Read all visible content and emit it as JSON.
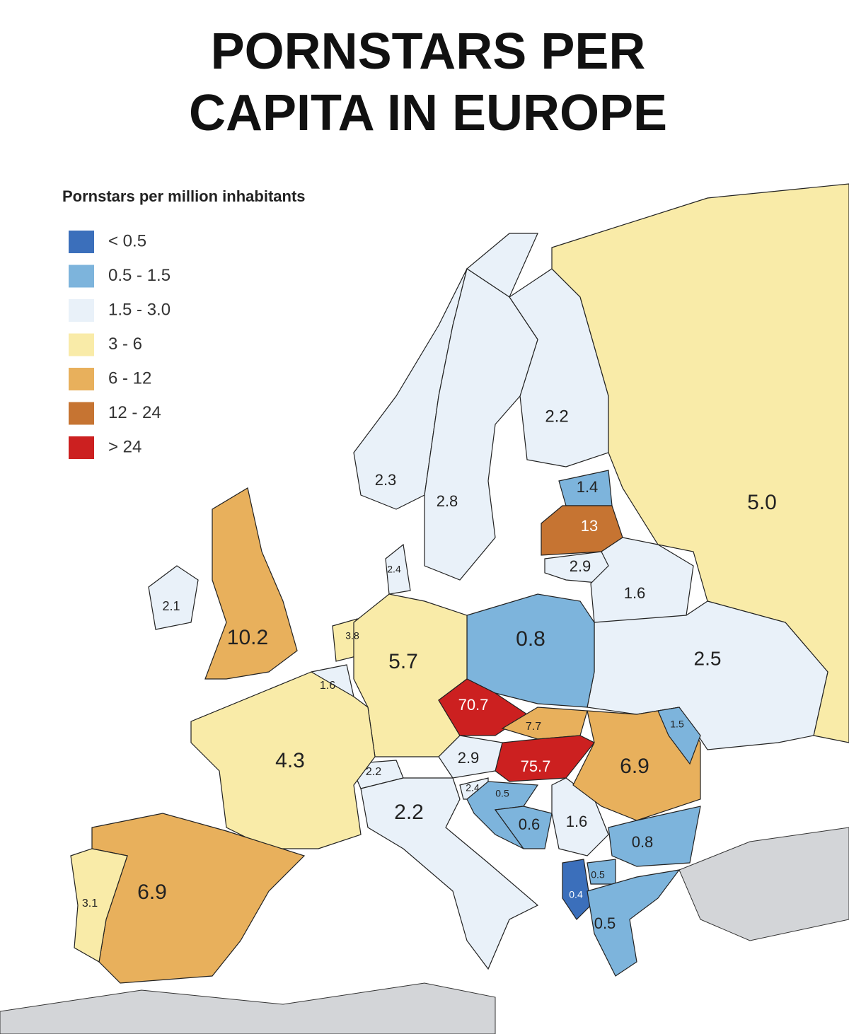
{
  "title": "PORNSTARS PER\nCAPITA IN EUROPE",
  "legend": {
    "title": "Pornstars per million inhabitants",
    "items": [
      {
        "label": "< 0.5",
        "color": "#3b6fbb"
      },
      {
        "label": "0.5 - 1.5",
        "color": "#7db4dc"
      },
      {
        "label": "1.5 - 3.0",
        "color": "#e9f1f9"
      },
      {
        "label": "3 - 6",
        "color": "#f9eba8"
      },
      {
        "label": "6 - 12",
        "color": "#e8b05c"
      },
      {
        "label": "12 - 24",
        "color": "#c67432"
      },
      {
        "label": "> 24",
        "color": "#cc2020"
      }
    ]
  },
  "regions": [
    {
      "value": 2.2,
      "color": "#e9f1f9"
    },
    {
      "value": 2.3,
      "color": "#e9f1f9"
    },
    {
      "value": 2.8,
      "color": "#e9f1f9"
    },
    {
      "value": 1.4,
      "color": "#7db4dc"
    },
    {
      "value": 13,
      "color": "#c67432"
    },
    {
      "value": 2.9,
      "color": "#e9f1f9"
    },
    {
      "value": 1.6,
      "color": "#e9f1f9"
    },
    {
      "value": 5,
      "label": "5.0",
      "color": "#f9eba8"
    },
    {
      "value": 2.5,
      "color": "#e9f1f9"
    },
    {
      "value": 0.8,
      "color": "#7db4dc"
    },
    {
      "value": 2.4,
      "color": "#e9f1f9"
    },
    {
      "value": 2.1,
      "color": "#e9f1f9"
    },
    {
      "value": 10.2,
      "color": "#e8b05c"
    },
    {
      "value": 3.8,
      "color": "#f9eba8"
    },
    {
      "value": 1.6,
      "color": "#e9f1f9"
    },
    {
      "value": 5.7,
      "color": "#f9eba8"
    },
    {
      "value": 70.7,
      "color": "#cc2020"
    },
    {
      "value": 7.7,
      "color": "#e8b05c"
    },
    {
      "value": 75.7,
      "color": "#cc2020"
    },
    {
      "value": 2.9,
      "color": "#e9f1f9"
    },
    {
      "value": 2.2,
      "color": "#e9f1f9"
    },
    {
      "value": 4.3,
      "color": "#f9eba8"
    },
    {
      "value": 2.2,
      "color": "#e9f1f9"
    },
    {
      "value": 2.4,
      "color": "#e9f1f9"
    },
    {
      "value": 0.5,
      "color": "#7db4dc"
    },
    {
      "value": 0.6,
      "color": "#7db4dc"
    },
    {
      "value": 1.6,
      "color": "#e9f1f9"
    },
    {
      "value": 6.9,
      "color": "#e8b05c"
    },
    {
      "value": 1.5,
      "color": "#7db4dc"
    },
    {
      "value": 0.8,
      "color": "#7db4dc"
    },
    {
      "value": 0.5,
      "color": "#7db4dc"
    },
    {
      "value": 0.4,
      "color": "#3b6fbb"
    },
    {
      "value": 0.5,
      "color": "#7db4dc"
    },
    {
      "value": 6.9,
      "color": "#e8b05c"
    },
    {
      "value": 3.1,
      "color": "#f9eba8"
    }
  ]
}
